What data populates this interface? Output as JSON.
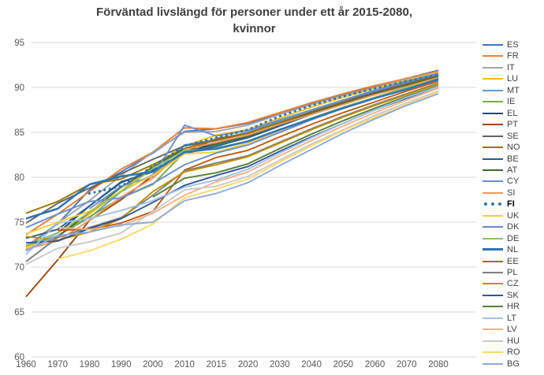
{
  "title": {
    "line1": "Förväntad livslängd för personer under ett år 2015-2080,",
    "line2": "kvinnor"
  },
  "colors": {
    "title_text": "#3f3f3f",
    "axis_text": "#595959",
    "gridline": "#d9d9d9",
    "background": "#ffffff",
    "highlight_series": "#2e75b6"
  },
  "chart_data": {
    "type": "line",
    "title": "Förväntad livslängd för personer under ett år 2015-2080, kvinnor",
    "xlabel": "",
    "ylabel": "",
    "ylim": [
      60,
      95
    ],
    "yticks": [
      60,
      65,
      70,
      75,
      80,
      85,
      90,
      95
    ],
    "grid": true,
    "legend_position": "right",
    "categories": [
      "1960",
      "1970",
      "1980",
      "1990",
      "2000",
      "2010",
      "2015",
      "2020",
      "2030",
      "2040",
      "2050",
      "2060",
      "2070",
      "2080"
    ],
    "series": [
      {
        "name": "ES",
        "color": "#4472c4",
        "values": [
          72.2,
          74.8,
          78.6,
          80.6,
          82.7,
          85.1,
          85.4,
          86.0,
          87.1,
          88.2,
          89.2,
          90.1,
          91.0,
          91.9
        ]
      },
      {
        "name": "FR",
        "color": "#ed7d31",
        "values": [
          73.6,
          75.9,
          78.4,
          80.9,
          82.8,
          85.5,
          85.4,
          86.1,
          87.2,
          88.3,
          89.3,
          90.2,
          91.0,
          91.8
        ]
      },
      {
        "name": "IT",
        "color": "#a5a5a5",
        "values": [
          72.3,
          74.9,
          77.4,
          80.2,
          82.8,
          85.0,
          85.1,
          85.8,
          87.0,
          88.1,
          89.1,
          90.0,
          90.9,
          91.7
        ]
      },
      {
        "name": "LU",
        "color": "#ffc000",
        "values": [
          72.2,
          73.4,
          75.9,
          78.5,
          81.3,
          83.5,
          84.7,
          85.3,
          86.6,
          87.8,
          88.9,
          89.9,
          90.8,
          91.7
        ]
      },
      {
        "name": "MT",
        "color": "#5b9bd5",
        "values": [
          72.4,
          73.5,
          75.5,
          78.4,
          80.3,
          83.6,
          84.2,
          85.0,
          86.3,
          87.5,
          88.6,
          89.7,
          90.7,
          91.6
        ]
      },
      {
        "name": "IE",
        "color": "#70ad47",
        "values": [
          71.9,
          73.5,
          75.6,
          77.7,
          79.2,
          82.8,
          83.4,
          84.5,
          85.8,
          87.1,
          88.3,
          89.4,
          90.4,
          91.4
        ]
      },
      {
        "name": "EL",
        "color": "#264478",
        "values": [
          72.4,
          73.8,
          76.8,
          79.5,
          80.6,
          82.8,
          83.7,
          84.6,
          85.9,
          87.1,
          88.3,
          89.4,
          90.4,
          91.4
        ]
      },
      {
        "name": "PT",
        "color": "#9e480e",
        "values": [
          66.7,
          70.8,
          75.2,
          77.5,
          80.2,
          82.8,
          84.3,
          84.9,
          86.1,
          87.3,
          88.4,
          89.5,
          90.4,
          91.4
        ]
      },
      {
        "name": "SE",
        "color": "#636363",
        "values": [
          74.9,
          77.1,
          78.8,
          80.4,
          82.0,
          83.5,
          84.1,
          84.9,
          86.1,
          87.3,
          88.4,
          89.4,
          90.4,
          91.3
        ]
      },
      {
        "name": "NO",
        "color": "#997300",
        "values": [
          76.0,
          77.3,
          79.2,
          79.8,
          81.4,
          83.2,
          84.2,
          84.9,
          86.1,
          87.2,
          88.3,
          89.3,
          90.3,
          91.3
        ]
      },
      {
        "name": "BE",
        "color": "#255e91",
        "values": [
          73.2,
          74.2,
          76.8,
          79.4,
          80.8,
          82.6,
          83.5,
          84.4,
          85.7,
          87.0,
          88.2,
          89.2,
          90.2,
          91.2
        ]
      },
      {
        "name": "AT",
        "color": "#43682b",
        "values": [
          71.9,
          73.4,
          76.1,
          78.9,
          81.1,
          83.2,
          83.7,
          84.6,
          85.9,
          87.1,
          88.2,
          89.3,
          90.2,
          91.2
        ]
      },
      {
        "name": "CY",
        "color": "#698ed0",
        "values": [
          null,
          null,
          76.5,
          79.0,
          80.1,
          85.8,
          84.6,
          85.2,
          86.4,
          87.5,
          88.6,
          89.6,
          90.6,
          91.5
        ]
      },
      {
        "name": "SI",
        "color": "#f1975a",
        "values": [
          72.0,
          72.9,
          75.2,
          77.8,
          79.9,
          83.1,
          83.9,
          84.7,
          85.9,
          87.0,
          88.1,
          89.2,
          90.1,
          91.1
        ]
      },
      {
        "name": "FI",
        "color": "#2e75b6",
        "dotted": true,
        "bold_legend": true,
        "values": [
          null,
          null,
          78.2,
          79.0,
          81.2,
          83.5,
          84.4,
          85.3,
          86.8,
          88.0,
          89.0,
          89.9,
          90.7,
          91.4
        ]
      },
      {
        "name": "UK",
        "color": "#ffcd33",
        "values": [
          73.7,
          75.0,
          76.2,
          78.5,
          80.2,
          82.6,
          82.8,
          83.8,
          85.2,
          86.5,
          87.8,
          88.9,
          90.0,
          91.0
        ]
      },
      {
        "name": "DK",
        "color": "#698ed0",
        "values": [
          74.4,
          75.9,
          77.3,
          77.7,
          79.3,
          81.4,
          82.7,
          83.6,
          85.0,
          86.4,
          87.7,
          88.8,
          89.9,
          91.0
        ]
      },
      {
        "name": "DE",
        "color": "#8cc168",
        "values": [
          72.4,
          73.8,
          76.1,
          78.4,
          81.0,
          83.0,
          83.1,
          84.0,
          85.3,
          86.6,
          87.8,
          88.9,
          90.0,
          90.9
        ]
      },
      {
        "name": "NL",
        "color": "#2e75b6",
        "thick": true,
        "values": [
          75.4,
          76.5,
          79.2,
          80.1,
          80.6,
          82.8,
          83.2,
          84.0,
          85.3,
          86.5,
          87.7,
          88.8,
          89.8,
          90.9
        ]
      },
      {
        "name": "EE",
        "color": "#c55a11",
        "values": [
          null,
          74.1,
          74.2,
          74.9,
          76.2,
          80.8,
          82.2,
          83.0,
          84.5,
          85.9,
          87.2,
          88.4,
          89.6,
          90.7
        ]
      },
      {
        "name": "PL",
        "color": "#7f7f7f",
        "values": [
          70.6,
          73.3,
          74.4,
          75.5,
          78.0,
          80.7,
          81.6,
          82.4,
          83.9,
          85.4,
          86.8,
          88.1,
          89.3,
          90.5
        ]
      },
      {
        "name": "CZ",
        "color": "#bf8f00",
        "values": [
          73.4,
          73.0,
          73.9,
          75.4,
          78.4,
          80.6,
          81.4,
          82.3,
          83.8,
          85.3,
          86.7,
          88.0,
          89.2,
          90.4
        ]
      },
      {
        "name": "SK",
        "color": "#2f5597",
        "values": [
          72.7,
          72.9,
          74.3,
          75.4,
          77.2,
          79.1,
          80.2,
          81.2,
          82.9,
          84.5,
          86.0,
          87.5,
          88.8,
          90.1
        ]
      },
      {
        "name": "HR",
        "color": "#538135",
        "values": [
          null,
          null,
          null,
          null,
          77.8,
          79.9,
          80.5,
          81.5,
          83.2,
          84.8,
          86.3,
          87.7,
          89.0,
          90.2
        ]
      },
      {
        "name": "LT",
        "color": "#9dc3e6",
        "values": [
          71.4,
          74.9,
          75.4,
          76.3,
          77.4,
          78.9,
          79.7,
          80.9,
          82.7,
          84.4,
          86.0,
          87.5,
          88.9,
          90.1
        ]
      },
      {
        "name": "LV",
        "color": "#f4b183",
        "values": [
          null,
          74.4,
          74.2,
          74.6,
          76.0,
          78.0,
          79.5,
          80.6,
          82.4,
          84.1,
          85.7,
          87.2,
          88.6,
          89.9
        ]
      },
      {
        "name": "HU",
        "color": "#c9c9c9",
        "values": [
          70.3,
          72.1,
          72.8,
          73.8,
          76.2,
          78.6,
          79.0,
          80.1,
          81.9,
          83.7,
          85.3,
          86.9,
          88.3,
          89.6
        ]
      },
      {
        "name": "RO",
        "color": "#ffd966",
        "values": [
          null,
          70.9,
          71.8,
          73.1,
          74.8,
          77.7,
          78.7,
          79.8,
          81.7,
          83.5,
          85.2,
          86.7,
          88.1,
          89.5
        ]
      },
      {
        "name": "BG",
        "color": "#8faadc",
        "values": [
          71.8,
          73.5,
          73.9,
          74.7,
          75.0,
          77.4,
          78.2,
          79.4,
          81.3,
          83.1,
          84.9,
          86.5,
          88.0,
          89.3
        ]
      }
    ]
  }
}
